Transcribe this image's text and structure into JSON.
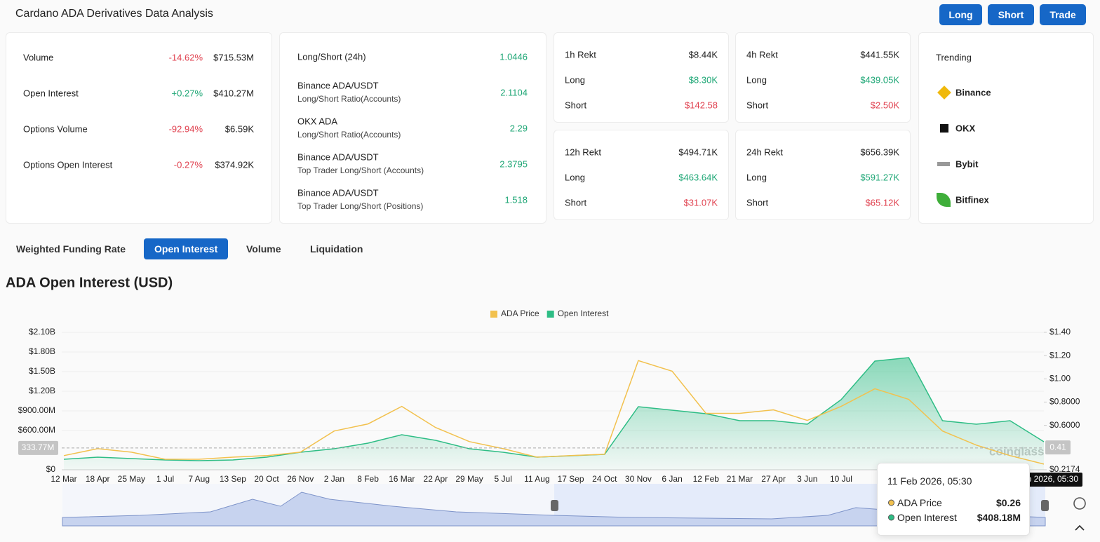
{
  "header": {
    "title": "Cardano ADA Derivatives Data Analysis",
    "buttons": [
      "Long",
      "Short",
      "Trade"
    ]
  },
  "market_stats": [
    {
      "label": "Volume",
      "change": "-14.62%",
      "value": "$715.53M"
    },
    {
      "label": "Open Interest",
      "change": "+0.27%",
      "value": "$410.27M"
    },
    {
      "label": "Options Volume",
      "change": "-92.94%",
      "value": "$6.59K"
    },
    {
      "label": "Options Open Interest",
      "change": "-0.27%",
      "value": "$374.92K"
    }
  ],
  "long_short": [
    {
      "title": "Long/Short (24h)",
      "value": "1.0446"
    },
    {
      "title": "Binance ADA/USDT",
      "subtitle": "Long/Short Ratio(Accounts)",
      "value": "2.1104"
    },
    {
      "title": "OKX ADA",
      "subtitle": "Long/Short Ratio(Accounts)",
      "value": "2.29"
    },
    {
      "title": "Binance ADA/USDT",
      "subtitle": "Top Trader Long/Short (Accounts)",
      "value": "2.3795"
    },
    {
      "title": "Binance ADA/USDT",
      "subtitle": "Top Trader Long/Short (Positions)",
      "value": "1.518"
    }
  ],
  "rekt": {
    "long_label": "Long",
    "short_label": "Short",
    "cards": [
      {
        "title": "1h Rekt",
        "total": "$8.44K",
        "long": "$8.30K",
        "short": "$142.58"
      },
      {
        "title": "4h Rekt",
        "total": "$441.55K",
        "long": "$439.05K",
        "short": "$2.50K"
      },
      {
        "title": "12h Rekt",
        "total": "$494.71K",
        "long": "$463.64K",
        "short": "$31.07K"
      },
      {
        "title": "24h Rekt",
        "total": "$656.39K",
        "long": "$591.27K",
        "short": "$65.12K"
      }
    ]
  },
  "trending": {
    "title": "Trending",
    "items": [
      "Binance",
      "OKX",
      "Bybit",
      "Bitfinex"
    ]
  },
  "tabs": [
    "Weighted Funding Rate",
    "Open Interest",
    "Volume",
    "Liquidation"
  ],
  "active_tab": 1,
  "chart_data": {
    "type": "line",
    "title": "ADA Open Interest (USD)",
    "categories": [
      "12 Mar",
      "18 Apr",
      "25 May",
      "1 Jul",
      "7 Aug",
      "13 Sep",
      "20 Oct",
      "26 Nov",
      "2 Jan",
      "8 Feb",
      "16 Mar",
      "22 Apr",
      "29 May",
      "5 Jul",
      "11 Aug",
      "17 Sep",
      "24 Oct",
      "30 Nov",
      "6 Jan",
      "12 Feb",
      "21 Mar",
      "27 Apr",
      "3 Jun",
      "10 Jul",
      null,
      null,
      null,
      null,
      null,
      null
    ],
    "series": [
      {
        "name": "ADA Price",
        "color": "#f2c14e",
        "axis": "y2",
        "values": [
          0.339,
          0.399,
          0.369,
          0.308,
          0.308,
          0.326,
          0.339,
          0.369,
          0.551,
          0.612,
          0.763,
          0.581,
          0.46,
          0.399,
          0.326,
          0.339,
          0.351,
          1.157,
          1.066,
          0.703,
          0.703,
          0.733,
          0.642,
          0.763,
          0.915,
          0.824,
          0.551,
          0.43,
          0.339,
          0.266
        ]
      },
      {
        "name": "Open Interest",
        "color": "#2ebd85",
        "area": true,
        "values": [
          161000000,
          193000000,
          171000000,
          150000000,
          139000000,
          150000000,
          193000000,
          268000000,
          321000000,
          407000000,
          536000000,
          450000000,
          321000000,
          268000000,
          193000000,
          214000000,
          236000000,
          964000000,
          911000000,
          857000000,
          750000000,
          750000000,
          696000000,
          1071000000,
          1661000000,
          1714000000,
          750000000,
          696000000,
          750000000,
          429000000
        ]
      }
    ],
    "ylim": [
      0,
      2100000000
    ],
    "yticks": [
      {
        "value": 0,
        "label": "$0"
      },
      {
        "value": 600000000,
        "label": "$600.00M"
      },
      {
        "value": 900000000,
        "label": "$900.00M"
      },
      {
        "value": 1200000000,
        "label": "$1.20B"
      },
      {
        "value": 1500000000,
        "label": "$1.50B"
      },
      {
        "value": 1800000000,
        "label": "$1.80B"
      },
      {
        "value": 2100000000,
        "label": "$2.10B"
      }
    ],
    "y2lim": [
      0.2174,
      1.4
    ],
    "y2ticks": [
      {
        "value": 0.2174,
        "label": "$0.2174"
      },
      {
        "value": 0.6,
        "label": "$0.6000"
      },
      {
        "value": 0.8,
        "label": "$0.8000"
      },
      {
        "value": 1,
        "label": "$1.00"
      },
      {
        "value": 1.2,
        "label": "$1.20"
      },
      {
        "value": 1.4,
        "label": "$1.40"
      }
    ],
    "grid": true,
    "crosshair": {
      "y": {
        "value": 333770000,
        "label": "333.77M"
      },
      "y2": {
        "value": 0.41,
        "label": "0.41"
      }
    },
    "watermark": "coinglass"
  },
  "tooltip": {
    "date": "11 Feb 2026, 05:30",
    "rows": [
      {
        "name": "ADA Price",
        "value": "$0.26"
      },
      {
        "name": "Open Interest",
        "value": "$408.18M"
      }
    ]
  }
}
